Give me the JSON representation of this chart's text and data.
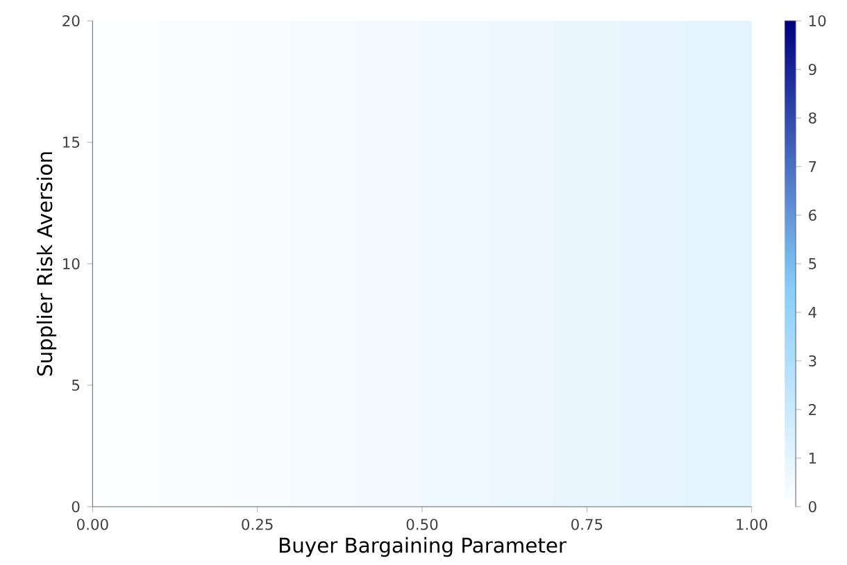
{
  "chart_data": {
    "type": "heatmap",
    "xlabel": "Buyer Bargaining Parameter",
    "ylabel": "Supplier Risk Aversion",
    "x": [
      0.05,
      0.15,
      0.25,
      0.35,
      0.45,
      0.55,
      0.65,
      0.75,
      0.85,
      0.95
    ],
    "cells": [
      [
        0.1,
        0.2,
        0.3,
        0.4,
        0.5,
        0.6,
        0.7,
        0.8,
        0.9,
        1.0
      ]
    ],
    "xlim": [
      0,
      1
    ],
    "ylim": [
      0,
      20
    ],
    "xticks": [
      {
        "value": 0,
        "label": "0.00"
      },
      {
        "value": 0.25,
        "label": "0.25"
      },
      {
        "value": 0.5,
        "label": "0.50"
      },
      {
        "value": 0.75,
        "label": "0.75"
      },
      {
        "value": 1,
        "label": "1.00"
      }
    ],
    "yticks": [
      0,
      5,
      10,
      15,
      20
    ],
    "clim": [
      0,
      10
    ],
    "cticks": [
      0,
      1,
      2,
      3,
      4,
      5,
      6,
      7,
      8,
      9,
      10
    ]
  }
}
